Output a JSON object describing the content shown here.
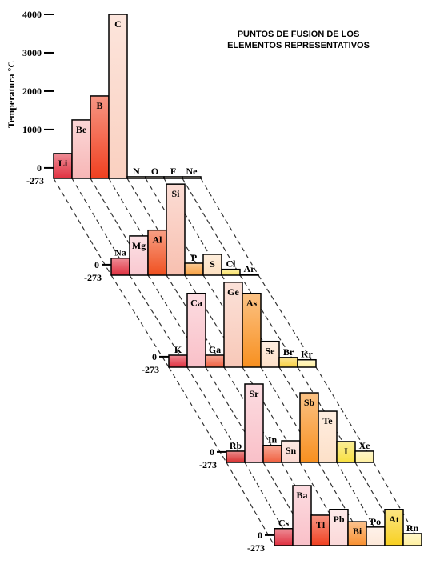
{
  "chart_data": {
    "type": "bar",
    "title": [
      "PUNTOS DE FUSION DE LOS",
      "ELEMENTOS REPRESENTATIVOS"
    ],
    "y_label": "Temperatura °C",
    "ylim": [
      -273,
      4000
    ],
    "yticks": [
      -273,
      0,
      1000,
      2000,
      3000,
      4000
    ],
    "rows": [
      {
        "categories": [
          "Li",
          "Be",
          "B",
          "C",
          "N",
          "O",
          "F",
          "Ne"
        ],
        "values": [
          375,
          1250,
          1875,
          4000,
          -230,
          -230,
          -230,
          -230
        ],
        "colors": [
          "#e03040",
          "#f7b6b6",
          "#f04020",
          "#fad0c0",
          "#fbe9c8",
          "#fbe9c8",
          "#fbe9c8",
          "#fbe9c8"
        ]
      },
      {
        "categories": [
          "Na",
          "Mg",
          "Al",
          "Si",
          "P",
          "S",
          "Cl",
          "Ar"
        ],
        "values": [
          170,
          750,
          900,
          2100,
          40,
          270,
          -120,
          -250
        ],
        "colors": [
          "#e03040",
          "#f9c8d0",
          "#f05020",
          "#f8c0b0",
          "#f8a040",
          "#fde0c0",
          "#f8e060",
          "#fff0b0"
        ]
      },
      {
        "categories": [
          "K",
          "Ca",
          "Ga",
          "Ge",
          "As",
          "Se",
          "Br",
          "Kr"
        ],
        "values": [
          40,
          1650,
          40,
          1940,
          1650,
          400,
          -20,
          -80
        ],
        "colors": [
          "#e03040",
          "#f9c0c8",
          "#f06040",
          "#f8c8b8",
          "#f89020",
          "#fde0c8",
          "#f8d040",
          "#fff0a0"
        ]
      },
      {
        "categories": [
          "Rb",
          "Sr",
          "In",
          "Sn",
          "Sb",
          "Te",
          "I",
          "Xe"
        ],
        "values": [
          20,
          1770,
          170,
          290,
          1540,
          1060,
          270,
          20
        ],
        "colors": [
          "#d83030",
          "#f9c0c8",
          "#f06040",
          "#fbd8d0",
          "#f89020",
          "#fde0c8",
          "#f8e040",
          "#fff0a0"
        ]
      },
      {
        "categories": [
          "Cs",
          "Ba",
          "Tl",
          "Pb",
          "Bi",
          "Po",
          "At",
          "Rn"
        ],
        "values": [
          170,
          1290,
          520,
          670,
          350,
          210,
          670,
          40
        ],
        "colors": [
          "#e03040",
          "#f9c0c8",
          "#f04020",
          "#fbd8d8",
          "#f89030",
          "#fde8d8",
          "#f8d020",
          "#fff0a0"
        ]
      }
    ]
  }
}
